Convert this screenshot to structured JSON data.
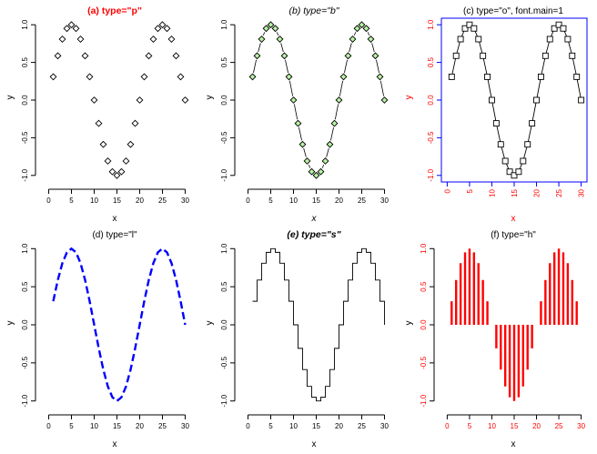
{
  "colors": {
    "black": "#000000",
    "red": "#ff0000",
    "blue": "#0000ff",
    "green_fill": "#b8f3a2"
  },
  "chart_data": [
    {
      "id": "p1",
      "type": "scatter",
      "render": "points",
      "pch": "diamond",
      "point_color": "#000000",
      "point_fill": "none",
      "title": "(a) type=\"p\"",
      "title_style": "bold",
      "title_color": "#ff0000",
      "xlabel": "x",
      "ylabel": "y",
      "axis_color": "#000000",
      "label_color": "#000000",
      "xlim": [
        0,
        30
      ],
      "ylim": [
        -1,
        1
      ],
      "xticks": [
        0,
        5,
        10,
        15,
        20,
        25,
        30
      ],
      "yticks": [
        -1.0,
        -0.5,
        0.0,
        0.5,
        1.0
      ],
      "xtick_labels": [
        "0",
        "5",
        "10",
        "15",
        "20",
        "25",
        "30"
      ],
      "ytick_labels": [
        "-1.0",
        "-0.5",
        "0.0",
        "0.5",
        "1.0"
      ],
      "x": [
        1,
        2,
        3,
        4,
        5,
        6,
        7,
        8,
        9,
        10,
        11,
        12,
        13,
        14,
        15,
        16,
        17,
        18,
        19,
        20,
        21,
        22,
        23,
        24,
        25,
        26,
        27,
        28,
        29,
        30
      ],
      "y": [
        0.309,
        0.588,
        0.809,
        0.951,
        1.0,
        0.951,
        0.809,
        0.588,
        0.309,
        0.0,
        -0.309,
        -0.588,
        -0.809,
        -0.951,
        -1.0,
        -0.951,
        -0.809,
        -0.588,
        -0.309,
        0.0,
        0.309,
        0.588,
        0.809,
        0.951,
        1.0,
        0.951,
        0.809,
        0.588,
        0.309,
        0.0
      ]
    },
    {
      "id": "p2",
      "type": "scatter",
      "render": "both",
      "pch": "diamond",
      "point_color": "#000000",
      "point_fill": "#b8f3a2",
      "title": "(b) type=\"b\"",
      "title_style": "italic",
      "title_color": "#000000",
      "xlabel": "x",
      "ylabel": "y",
      "xlabel_style": "italic",
      "axis_color": "#000000",
      "label_color": "#000000",
      "xlim": [
        0,
        30
      ],
      "ylim": [
        -1,
        1
      ],
      "xticks": [
        0,
        5,
        10,
        15,
        20,
        25,
        30
      ],
      "yticks": [
        -1.0,
        -0.5,
        0.0,
        0.5,
        1.0
      ],
      "xtick_labels": [
        "0",
        "5",
        "10",
        "15",
        "20",
        "25",
        "30"
      ],
      "ytick_labels": [
        "-1.0",
        "-0.5",
        "0.0",
        "0.5",
        "1.0"
      ],
      "x": [
        1,
        2,
        3,
        4,
        5,
        6,
        7,
        8,
        9,
        10,
        11,
        12,
        13,
        14,
        15,
        16,
        17,
        18,
        19,
        20,
        21,
        22,
        23,
        24,
        25,
        26,
        27,
        28,
        29,
        30
      ],
      "y": [
        0.309,
        0.588,
        0.809,
        0.951,
        1.0,
        0.951,
        0.809,
        0.588,
        0.309,
        0.0,
        -0.309,
        -0.588,
        -0.809,
        -0.951,
        -1.0,
        -0.951,
        -0.809,
        -0.588,
        -0.309,
        0.0,
        0.309,
        0.588,
        0.809,
        0.951,
        1.0,
        0.951,
        0.809,
        0.588,
        0.309,
        0.0
      ]
    },
    {
      "id": "p3",
      "type": "line",
      "render": "overplot",
      "pch": "square",
      "point_color": "#000000",
      "point_fill": "none",
      "line_color": "#000000",
      "title": "(c) type=\"o\", font.main=1",
      "title_style": "normal",
      "title_color": "#000000",
      "xlabel": "x",
      "ylabel": "y",
      "axis_color": "#0000ff",
      "label_color": "#ff0000",
      "xlim": [
        0,
        30
      ],
      "ylim": [
        -1,
        1
      ],
      "xticks": [
        0,
        5,
        10,
        15,
        20,
        25,
        30
      ],
      "yticks": [
        -1.0,
        -0.5,
        0.0,
        0.5,
        1.0
      ],
      "xtick_labels": [
        "0",
        "5",
        "10",
        "15",
        "20",
        "25",
        "30"
      ],
      "ytick_labels": [
        "-1.0",
        "-0.5",
        "0.0",
        "0.5",
        "1.0"
      ],
      "x": [
        1,
        2,
        3,
        4,
        5,
        6,
        7,
        8,
        9,
        10,
        11,
        12,
        13,
        14,
        15,
        16,
        17,
        18,
        19,
        20,
        21,
        22,
        23,
        24,
        25,
        26,
        27,
        28,
        29,
        30
      ],
      "y": [
        0.309,
        0.588,
        0.809,
        0.951,
        1.0,
        0.951,
        0.809,
        0.588,
        0.309,
        0.0,
        -0.309,
        -0.588,
        -0.809,
        -0.951,
        -1.0,
        -0.951,
        -0.809,
        -0.588,
        -0.309,
        0.0,
        0.309,
        0.588,
        0.809,
        0.951,
        1.0,
        0.951,
        0.809,
        0.588,
        0.309,
        0.0
      ]
    },
    {
      "id": "p4",
      "type": "line",
      "render": "dashed",
      "line_color": "#0000ff",
      "title": "(d) type=\"l\"",
      "title_style": "normal",
      "title_color": "#000000",
      "xlabel": "x",
      "ylabel": "y",
      "axis_color": "#000000",
      "label_color": "#000000",
      "xlim": [
        0,
        30
      ],
      "ylim": [
        -1,
        1
      ],
      "xticks": [
        0,
        5,
        10,
        15,
        20,
        25,
        30
      ],
      "yticks": [
        -1.0,
        -0.5,
        0.0,
        0.5,
        1.0
      ],
      "xtick_labels": [
        "0",
        "5",
        "10",
        "15",
        "20",
        "25",
        "30"
      ],
      "ytick_labels": [
        "-1.0",
        "-0.5",
        "0.0",
        "0.5",
        "1.0"
      ],
      "x": [
        1,
        2,
        3,
        4,
        5,
        6,
        7,
        8,
        9,
        10,
        11,
        12,
        13,
        14,
        15,
        16,
        17,
        18,
        19,
        20,
        21,
        22,
        23,
        24,
        25,
        26,
        27,
        28,
        29,
        30
      ],
      "y": [
        0.309,
        0.588,
        0.809,
        0.951,
        1.0,
        0.951,
        0.809,
        0.588,
        0.309,
        0.0,
        -0.309,
        -0.588,
        -0.809,
        -0.951,
        -1.0,
        -0.951,
        -0.809,
        -0.588,
        -0.309,
        0.0,
        0.309,
        0.588,
        0.809,
        0.951,
        1.0,
        0.951,
        0.809,
        0.588,
        0.309,
        0.0
      ]
    },
    {
      "id": "p5",
      "type": "line",
      "render": "steps",
      "line_color": "#000000",
      "title": "(e) type=\"s\"",
      "title_style": "bolditalic",
      "title_color": "#000000",
      "xlabel": "x",
      "ylabel": "y",
      "axis_color": "#000000",
      "label_color": "#000000",
      "xlim": [
        0,
        30
      ],
      "ylim": [
        -1,
        1
      ],
      "xticks": [
        0,
        5,
        10,
        15,
        20,
        25,
        30
      ],
      "yticks": [
        -1.0,
        -0.5,
        0.0,
        0.5,
        1.0
      ],
      "xtick_labels": [
        "0",
        "5",
        "10",
        "15",
        "20",
        "25",
        "30"
      ],
      "ytick_labels": [
        "-1.0",
        "-0.5",
        "0.0",
        "0.5",
        "1.0"
      ],
      "x": [
        1,
        2,
        3,
        4,
        5,
        6,
        7,
        8,
        9,
        10,
        11,
        12,
        13,
        14,
        15,
        16,
        17,
        18,
        19,
        20,
        21,
        22,
        23,
        24,
        25,
        26,
        27,
        28,
        29,
        30
      ],
      "y": [
        0.309,
        0.588,
        0.809,
        0.951,
        1.0,
        0.951,
        0.809,
        0.588,
        0.309,
        0.0,
        -0.309,
        -0.588,
        -0.809,
        -0.951,
        -1.0,
        -0.951,
        -0.809,
        -0.588,
        -0.309,
        0.0,
        0.309,
        0.588,
        0.809,
        0.951,
        1.0,
        0.951,
        0.809,
        0.588,
        0.309,
        0.0
      ]
    },
    {
      "id": "p6",
      "type": "bar",
      "render": "histogram",
      "line_color": "#ff0000",
      "title": "(f) type=\"h\"",
      "title_style": "normal",
      "title_color": "#000000",
      "xlabel": "x",
      "ylabel": "y",
      "axis_color": "#000000",
      "label_color": "#000000",
      "tick_label_color": "#ff0000",
      "xlim": [
        0,
        30
      ],
      "ylim": [
        -1,
        1
      ],
      "xticks": [
        0,
        5,
        10,
        15,
        20,
        25,
        30
      ],
      "yticks": [
        -1.0,
        -0.5,
        0.0,
        0.5,
        1.0
      ],
      "xtick_labels": [
        "0",
        "5",
        "10",
        "15",
        "20",
        "25",
        "30"
      ],
      "ytick_labels": [
        "-1.0",
        "-0.5",
        "0.0",
        "0.5",
        "1.0"
      ],
      "x": [
        1,
        2,
        3,
        4,
        5,
        6,
        7,
        8,
        9,
        10,
        11,
        12,
        13,
        14,
        15,
        16,
        17,
        18,
        19,
        20,
        21,
        22,
        23,
        24,
        25,
        26,
        27,
        28,
        29,
        30
      ],
      "y": [
        0.309,
        0.588,
        0.809,
        0.951,
        1.0,
        0.951,
        0.809,
        0.588,
        0.309,
        0.0,
        -0.309,
        -0.588,
        -0.809,
        -0.951,
        -1.0,
        -0.951,
        -0.809,
        -0.588,
        -0.309,
        0.0,
        0.309,
        0.588,
        0.809,
        0.951,
        1.0,
        0.951,
        0.809,
        0.588,
        0.309,
        0.0
      ]
    }
  ]
}
